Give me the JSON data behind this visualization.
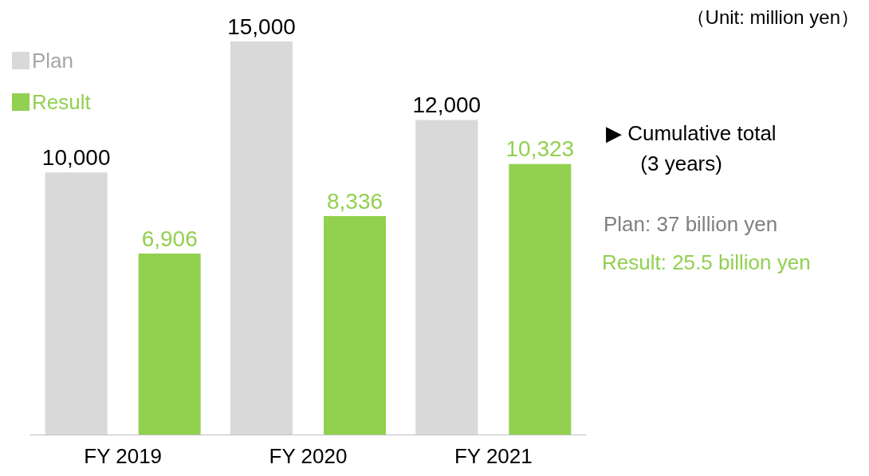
{
  "chart_data": {
    "type": "bar",
    "categories": [
      "FY 2019",
      "FY 2020",
      "FY 2021"
    ],
    "series": [
      {
        "name": "Plan",
        "color": "#d9d9d9",
        "values": [
          10000,
          15000,
          12000
        ],
        "value_labels": [
          "10,000",
          "15,000",
          "12,000"
        ]
      },
      {
        "name": "Result",
        "color": "#92d050",
        "values": [
          6906,
          8336,
          10323
        ],
        "value_labels": [
          "6,906",
          "8,336",
          "10,323"
        ]
      }
    ],
    "legend": "top left",
    "annotations": [
      "（Unit: million yen）",
      "▶ Cumulative total\n      (3 years)",
      "Plan: 37 billion yen",
      "Result: 25.5 billion yen"
    ]
  }
}
